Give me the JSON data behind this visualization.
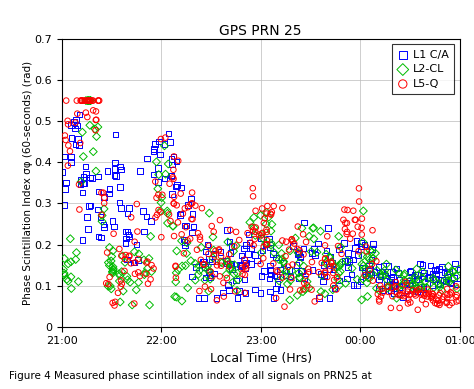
{
  "title": "GPS PRN 25",
  "xlabel": "Local Time (Hrs)",
  "ylabel": "Phase Scintillation Index σφ (60-seconds) (rad)",
  "caption": "Figure 4 Measured phase scintillation index of all signals on PRN25 at",
  "xlim": [
    0,
    240
  ],
  "ylim": [
    0,
    0.7
  ],
  "yticks": [
    0.0,
    0.1,
    0.2,
    0.3,
    0.4,
    0.5,
    0.6,
    0.7
  ],
  "xtick_labels": [
    "21:00",
    "22:00",
    "23:00",
    "00:00",
    "01:00"
  ],
  "xtick_positions": [
    0,
    60,
    120,
    180,
    240
  ],
  "legend_labels": [
    "L1 C/A",
    "L2-CL",
    "L5-Q"
  ],
  "colors": {
    "L1": "#0000FF",
    "L2": "#00BB00",
    "L5": "#FF0000"
  },
  "marker_size": 16,
  "background": "#FFFFFF",
  "grid_color": "#BBBBBB"
}
